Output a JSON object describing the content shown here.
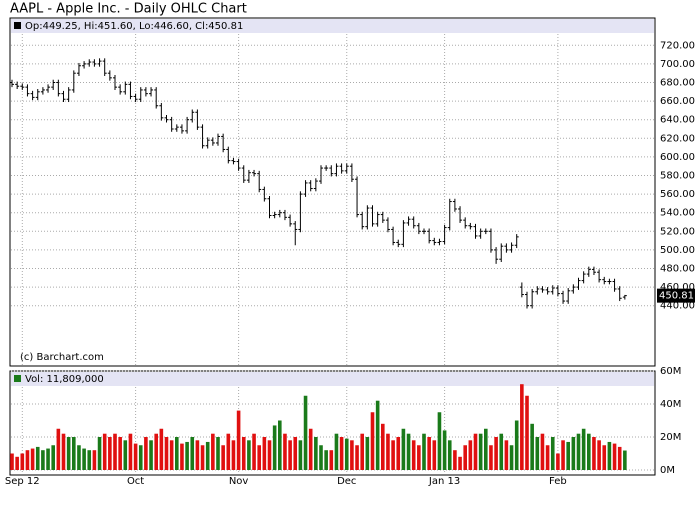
{
  "chart_data": [
    {
      "type": "ohlc",
      "title": "AAPL - Apple Inc. - Daily OHLC Chart",
      "legend_text": "Op:449.25, Hi:451.60, Lo:446.60, Cl:450.81",
      "credit": "(c) Barchart.com",
      "categories": [
        null,
        null,
        "Sep 12",
        null,
        null,
        null,
        null,
        null,
        null,
        null,
        null,
        null,
        null,
        null,
        null,
        null,
        null,
        null,
        null,
        null,
        null,
        null,
        null,
        null,
        "Oct",
        null,
        null,
        null,
        null,
        null,
        null,
        null,
        null,
        null,
        null,
        null,
        null,
        null,
        null,
        null,
        null,
        null,
        null,
        null,
        "Nov",
        null,
        null,
        null,
        null,
        null,
        null,
        null,
        null,
        null,
        null,
        null,
        null,
        null,
        null,
        null,
        null,
        null,
        null,
        null,
        null,
        "Dec",
        null,
        null,
        null,
        null,
        null,
        null,
        null,
        null,
        null,
        null,
        null,
        null,
        null,
        null,
        null,
        null,
        null,
        null,
        "Jan 13",
        null,
        null,
        null,
        null,
        null,
        null,
        null,
        null,
        null,
        null,
        null,
        null,
        null,
        null,
        null,
        null,
        null,
        null,
        null,
        null,
        null,
        "Feb",
        null,
        null,
        null,
        null,
        null,
        null,
        null,
        null,
        null,
        null,
        null,
        null,
        null
      ],
      "open": [
        680,
        678,
        676,
        675,
        668,
        664,
        670,
        672,
        675,
        680,
        668,
        662,
        672,
        690,
        698,
        700,
        702,
        700,
        703,
        690,
        685,
        675,
        670,
        678,
        665,
        662,
        672,
        668,
        672,
        655,
        642,
        640,
        630,
        632,
        628,
        640,
        648,
        632,
        612,
        618,
        615,
        622,
        608,
        596,
        595,
        588,
        575,
        583,
        582,
        565,
        555,
        537,
        538,
        540,
        535,
        528,
        522,
        560,
        572,
        566,
        574,
        588,
        588,
        582,
        590,
        585,
        590,
        576,
        538,
        525,
        545,
        528,
        538,
        532,
        522,
        508,
        506,
        529,
        533,
        526,
        520,
        520,
        510,
        508,
        509,
        524,
        552,
        544,
        532,
        526,
        525,
        515,
        520,
        520,
        500,
        490,
        504,
        500,
        505,
        460,
        452,
        440,
        455,
        458,
        457,
        455,
        459,
        453,
        445,
        456,
        460,
        467,
        474,
        479,
        476,
        468,
        466,
        466,
        458,
        449.25
      ],
      "high": [
        683,
        681,
        679,
        678,
        671,
        673,
        675,
        678,
        683,
        683,
        671,
        675,
        693,
        701,
        703,
        705,
        705,
        706,
        706,
        693,
        688,
        678,
        681,
        681,
        668,
        675,
        675,
        675,
        675,
        658,
        645,
        643,
        635,
        635,
        643,
        651,
        651,
        635,
        621,
        621,
        625,
        625,
        611,
        599,
        598,
        591,
        586,
        586,
        585,
        568,
        558,
        541,
        543,
        543,
        538,
        531,
        563,
        575,
        575,
        577,
        591,
        591,
        591,
        593,
        593,
        593,
        593,
        579,
        541,
        548,
        548,
        541,
        541,
        535,
        525,
        511,
        532,
        536,
        536,
        529,
        523,
        523,
        513,
        512,
        527,
        555,
        555,
        547,
        535,
        529,
        528,
        523,
        523,
        523,
        503,
        507,
        507,
        508,
        517,
        465,
        455,
        458,
        461,
        461,
        460,
        462,
        462,
        456,
        459,
        463,
        470,
        477,
        482,
        482,
        479,
        471,
        469,
        469,
        461,
        451.6
      ],
      "low": [
        675,
        673,
        672,
        665,
        661,
        661,
        667,
        669,
        672,
        665,
        659,
        659,
        669,
        687,
        695,
        697,
        697,
        697,
        687,
        682,
        672,
        667,
        667,
        662,
        659,
        659,
        665,
        665,
        652,
        639,
        637,
        627,
        627,
        625,
        625,
        637,
        629,
        609,
        609,
        612,
        612,
        605,
        593,
        592,
        585,
        572,
        572,
        579,
        562,
        552,
        534,
        534,
        535,
        532,
        525,
        505,
        519,
        557,
        563,
        563,
        571,
        585,
        579,
        579,
        582,
        582,
        573,
        535,
        522,
        522,
        525,
        525,
        529,
        519,
        505,
        503,
        503,
        526,
        523,
        517,
        517,
        507,
        505,
        505,
        506,
        521,
        541,
        529,
        523,
        522,
        512,
        512,
        517,
        497,
        485,
        487,
        497,
        497,
        502,
        449,
        437,
        437,
        452,
        454,
        452,
        452,
        450,
        442,
        442,
        453,
        457,
        464,
        471,
        473,
        465,
        463,
        463,
        455,
        445,
        446.6
      ],
      "close": [
        678,
        676,
        675,
        668,
        664,
        670,
        672,
        675,
        680,
        668,
        662,
        672,
        690,
        698,
        700,
        702,
        700,
        703,
        690,
        685,
        675,
        670,
        678,
        665,
        662,
        672,
        668,
        672,
        655,
        642,
        640,
        630,
        632,
        628,
        640,
        648,
        632,
        612,
        618,
        615,
        622,
        608,
        596,
        595,
        588,
        575,
        583,
        582,
        565,
        555,
        537,
        538,
        540,
        535,
        528,
        522,
        560,
        572,
        566,
        574,
        588,
        588,
        582,
        590,
        585,
        590,
        576,
        538,
        525,
        545,
        528,
        538,
        532,
        522,
        508,
        506,
        529,
        533,
        526,
        520,
        520,
        510,
        508,
        509,
        524,
        552,
        544,
        532,
        526,
        525,
        515,
        520,
        520,
        500,
        490,
        504,
        500,
        505,
        514,
        452,
        440,
        455,
        458,
        457,
        455,
        459,
        453,
        445,
        456,
        460,
        467,
        474,
        479,
        476,
        468,
        466,
        466,
        458,
        448,
        450.81
      ],
      "ylim": [
        430,
        730
      ],
      "yticks": [
        {
          "value": 440,
          "label": "440.00"
        },
        {
          "value": 460,
          "label": "460.00"
        },
        {
          "value": 480,
          "label": "480.00"
        },
        {
          "value": 500,
          "label": "500.00"
        },
        {
          "value": 520,
          "label": "520.00"
        },
        {
          "value": 540,
          "label": "540.00"
        },
        {
          "value": 560,
          "label": "560.00"
        },
        {
          "value": 580,
          "label": "580.00"
        },
        {
          "value": 600,
          "label": "600.00"
        },
        {
          "value": 620,
          "label": "620.00"
        },
        {
          "value": 640,
          "label": "640.00"
        },
        {
          "value": 660,
          "label": "660.00"
        },
        {
          "value": 680,
          "label": "680.00"
        },
        {
          "value": 700,
          "label": "700.00"
        },
        {
          "value": 720,
          "label": "720.00"
        }
      ],
      "grid": true,
      "color": "#000000"
    },
    {
      "type": "bar",
      "legend_text": "Vol: 11,809,000",
      "values": [
        10,
        8,
        10,
        12,
        13,
        14,
        12,
        13,
        15,
        25,
        22,
        20,
        20,
        15,
        13,
        12,
        12,
        20,
        22,
        20,
        22,
        20,
        18,
        22,
        16,
        15,
        20,
        18,
        22,
        25,
        20,
        18,
        20,
        16,
        17,
        20,
        18,
        15,
        17,
        22,
        20,
        15,
        22,
        18,
        36,
        20,
        18,
        22,
        15,
        20,
        18,
        27,
        30,
        22,
        18,
        20,
        18,
        45,
        25,
        20,
        15,
        12,
        12,
        22,
        20,
        19,
        18,
        15,
        22,
        20,
        35,
        42,
        28,
        22,
        18,
        20,
        25,
        22,
        18,
        15,
        22,
        20,
        18,
        35,
        24,
        18,
        12,
        8,
        15,
        18,
        22,
        22,
        25,
        15,
        20,
        22,
        18,
        15,
        30,
        52,
        45,
        28,
        20,
        22,
        15,
        20,
        10,
        18,
        17,
        20,
        22,
        25,
        22,
        20,
        18,
        15,
        17,
        16,
        14,
        11.809
      ],
      "ylim": [
        0,
        60
      ],
      "yticks": [
        {
          "value": 0,
          "label": "0M"
        },
        {
          "value": 20,
          "label": "20M"
        },
        {
          "value": 40,
          "label": "40M"
        },
        {
          "value": 60,
          "label": "60M"
        }
      ],
      "up_color": "#1a7a1a",
      "down_color": "#e01010",
      "grid": true
    }
  ]
}
